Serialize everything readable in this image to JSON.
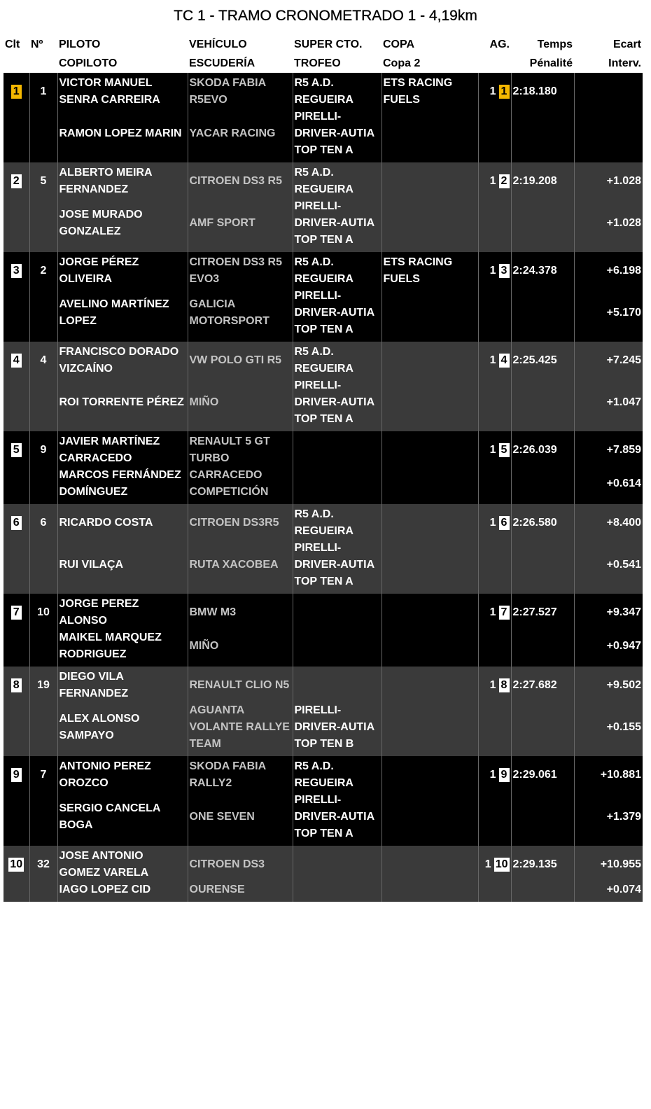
{
  "title": "TC 1 - TRAMO CRONOMETRADO 1 - 4,19km",
  "colors": {
    "row_dark": "#000000",
    "row_gray": "#3a3a3a",
    "leader_badge": "#f5b800",
    "badge": "#ffffff",
    "vehicle_text": "#c4c4c4"
  },
  "headers": {
    "clt": "Clt",
    "num": "Nº",
    "piloto": "PILOTO",
    "copiloto": "COPILOTO",
    "vehiculo": "VEHÍCULO",
    "escuderia": "ESCUDERÍA",
    "super": "SUPER CTO.",
    "trofeo": "TROFEO",
    "copa": "COPA",
    "copa2": "Copa 2",
    "ag": "AG.",
    "temps": "Temps",
    "penalite": "Pénalité",
    "ecart": "Ecart",
    "interv": "Interv."
  },
  "entries": [
    {
      "clt": "1",
      "num": "1",
      "piloto": "VICTOR MANUEL SENRA CARREIRA",
      "copiloto": "RAMON LOPEZ MARIN",
      "vehiculo": "SKODA FABIA R5EVO",
      "escuderia": "YACAR RACING",
      "super": "R5 A.D. REGUEIRA",
      "trofeo": "PIRELLI-DRIVER-AUTIA TOP TEN A",
      "copa": "ETS RACING FUELS",
      "copa2": "",
      "ag": "1",
      "pos": "1",
      "temps": "2:18.180",
      "penalite": "",
      "ecart": "",
      "interv": ""
    },
    {
      "clt": "2",
      "num": "5",
      "piloto": "ALBERTO MEIRA FERNANDEZ",
      "copiloto": "JOSE MURADO GONZALEZ",
      "vehiculo": "CITROEN DS3 R5",
      "escuderia": "AMF SPORT",
      "super": "R5 A.D. REGUEIRA",
      "trofeo": "PIRELLI-DRIVER-AUTIA TOP TEN A",
      "copa": "",
      "copa2": "",
      "ag": "1",
      "pos": "2",
      "temps": "2:19.208",
      "penalite": "",
      "ecart": "+1.028",
      "interv": "+1.028"
    },
    {
      "clt": "3",
      "num": "2",
      "piloto": "JORGE PÉREZ OLIVEIRA",
      "copiloto": "AVELINO MARTÍNEZ LOPEZ",
      "vehiculo": "CITROEN DS3 R5 EVO3",
      "escuderia": "GALICIA MOTORSPORT",
      "super": "R5 A.D. REGUEIRA",
      "trofeo": "PIRELLI-DRIVER-AUTIA TOP TEN A",
      "copa": "ETS RACING FUELS",
      "copa2": "",
      "ag": "1",
      "pos": "3",
      "temps": "2:24.378",
      "penalite": "",
      "ecart": "+6.198",
      "interv": "+5.170"
    },
    {
      "clt": "4",
      "num": "4",
      "piloto": "FRANCISCO DORADO VIZCAÍNO",
      "copiloto": "ROI TORRENTE PÉREZ",
      "vehiculo": "VW POLO GTI R5",
      "escuderia": "MIÑO",
      "super": "R5 A.D. REGUEIRA",
      "trofeo": "PIRELLI-DRIVER-AUTIA TOP TEN A",
      "copa": "",
      "copa2": "",
      "ag": "1",
      "pos": "4",
      "temps": "2:25.425",
      "penalite": "",
      "ecart": "+7.245",
      "interv": "+1.047"
    },
    {
      "clt": "5",
      "num": "9",
      "piloto": "JAVIER MARTÍNEZ CARRACEDO",
      "copiloto": "MARCOS FERNÁNDEZ DOMÍNGUEZ",
      "vehiculo": "RENAULT 5 GT TURBO",
      "escuderia": "CARRACEDO COMPETICIÓN",
      "super": "",
      "trofeo": "",
      "copa": "",
      "copa2": "",
      "ag": "1",
      "pos": "5",
      "temps": "2:26.039",
      "penalite": "",
      "ecart": "+7.859",
      "interv": "+0.614"
    },
    {
      "clt": "6",
      "num": "6",
      "piloto": "RICARDO COSTA",
      "copiloto": "RUI VILAÇA",
      "vehiculo": "CITROEN DS3R5",
      "escuderia": "RUTA XACOBEA",
      "super": "R5 A.D. REGUEIRA",
      "trofeo": "PIRELLI-DRIVER-AUTIA TOP TEN A",
      "copa": "",
      "copa2": "",
      "ag": "1",
      "pos": "6",
      "temps": "2:26.580",
      "penalite": "",
      "ecart": "+8.400",
      "interv": "+0.541"
    },
    {
      "clt": "7",
      "num": "10",
      "piloto": "JORGE PEREZ ALONSO",
      "copiloto": "MAIKEL MARQUEZ RODRIGUEZ",
      "vehiculo": "BMW M3",
      "escuderia": "MIÑO",
      "super": "",
      "trofeo": "",
      "copa": "",
      "copa2": "",
      "ag": "1",
      "pos": "7",
      "temps": "2:27.527",
      "penalite": "",
      "ecart": "+9.347",
      "interv": "+0.947"
    },
    {
      "clt": "8",
      "num": "19",
      "piloto": "DIEGO VILA FERNANDEZ",
      "copiloto": "ALEX ALONSO SAMPAYO",
      "vehiculo": "RENAULT CLIO N5",
      "escuderia": "AGUANTA VOLANTE RALLYE TEAM",
      "super": "",
      "trofeo": "PIRELLI-DRIVER-AUTIA TOP TEN B",
      "copa": "",
      "copa2": "",
      "ag": "1",
      "pos": "8",
      "temps": "2:27.682",
      "penalite": "",
      "ecart": "+9.502",
      "interv": "+0.155"
    },
    {
      "clt": "9",
      "num": "7",
      "piloto": "ANTONIO PEREZ OROZCO",
      "copiloto": "SERGIO CANCELA BOGA",
      "vehiculo": "SKODA FABIA RALLY2",
      "escuderia": "ONE SEVEN",
      "super": "R5 A.D. REGUEIRA",
      "trofeo": "PIRELLI-DRIVER-AUTIA TOP TEN A",
      "copa": "",
      "copa2": "",
      "ag": "1",
      "pos": "9",
      "temps": "2:29.061",
      "penalite": "",
      "ecart": "+10.881",
      "interv": "+1.379"
    },
    {
      "clt": "10",
      "num": "32",
      "piloto": "JOSE ANTONIO GOMEZ VARELA",
      "copiloto": "IAGO LOPEZ CID",
      "vehiculo": "CITROEN DS3",
      "escuderia": "OURENSE",
      "super": "",
      "trofeo": "",
      "copa": "",
      "copa2": "",
      "ag": "1",
      "pos": "10",
      "temps": "2:29.135",
      "penalite": "",
      "ecart": "+10.955",
      "interv": "+0.074"
    }
  ]
}
